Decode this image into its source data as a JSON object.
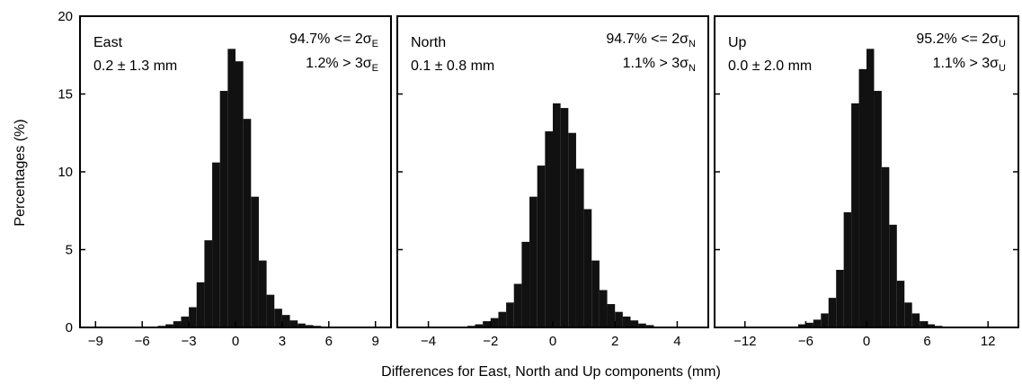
{
  "figure": {
    "ylabel": "Percentages (%)",
    "xlabel": "Differences for East, North and Up components (mm)"
  },
  "chart_data": [
    {
      "type": "bar",
      "panel": "East",
      "ylim": [
        0,
        20
      ],
      "yticks": [
        0,
        5,
        10,
        15,
        20
      ],
      "xlim": [
        -10,
        10
      ],
      "xticks": [
        -9,
        -6,
        -3,
        0,
        3,
        6,
        9
      ],
      "bin_width": 0.5,
      "bin_centers": [
        -5.25,
        -4.75,
        -4.25,
        -3.75,
        -3.25,
        -2.75,
        -2.25,
        -1.75,
        -1.25,
        -0.75,
        -0.25,
        0.25,
        0.75,
        1.25,
        1.75,
        2.25,
        2.75,
        3.25,
        3.75,
        4.25,
        4.75,
        5.25,
        5.75,
        6.25
      ],
      "values": [
        0.05,
        0.1,
        0.2,
        0.4,
        0.7,
        1.3,
        2.9,
        5.6,
        10.6,
        15.2,
        17.9,
        17.1,
        13.4,
        8.4,
        4.3,
        2.1,
        1.2,
        0.8,
        0.45,
        0.25,
        0.15,
        0.1,
        0.05,
        0.03
      ],
      "annotations": {
        "name": "East",
        "mean_std": "0.2 ± 1.3 mm",
        "within_2sigma": "94.7% <= 2σ",
        "beyond_3sigma": "1.2% > 3σ",
        "sigma_subscript": "E"
      }
    },
    {
      "type": "bar",
      "panel": "North",
      "ylim": [
        0,
        20
      ],
      "yticks": [
        0,
        5,
        10,
        15,
        20
      ],
      "xlim": [
        -5,
        5
      ],
      "xticks": [
        -4,
        -2,
        0,
        2,
        4
      ],
      "bin_width": 0.25,
      "bin_centers": [
        -2.875,
        -2.625,
        -2.375,
        -2.125,
        -1.875,
        -1.625,
        -1.375,
        -1.125,
        -0.875,
        -0.625,
        -0.375,
        -0.125,
        0.125,
        0.375,
        0.625,
        0.875,
        1.125,
        1.375,
        1.625,
        1.875,
        2.125,
        2.375,
        2.625,
        2.875,
        3.125,
        3.375
      ],
      "values": [
        0.05,
        0.1,
        0.2,
        0.4,
        0.6,
        1.0,
        1.6,
        2.8,
        5.5,
        8.4,
        10.4,
        12.6,
        14.4,
        14.1,
        12.5,
        10.2,
        7.6,
        4.3,
        2.4,
        1.5,
        1.0,
        0.7,
        0.45,
        0.25,
        0.15,
        0.05
      ],
      "annotations": {
        "name": "North",
        "mean_std": "0.1 ± 0.8 mm",
        "within_2sigma": "94.7% <= 2σ",
        "beyond_3sigma": "1.1% > 3σ",
        "sigma_subscript": "N"
      }
    },
    {
      "type": "bar",
      "panel": "Up",
      "ylim": [
        0,
        20
      ],
      "yticks": [
        0,
        5,
        10,
        15,
        20
      ],
      "xlim": [
        -15,
        15
      ],
      "xticks": [
        -12,
        -6,
        0,
        6,
        12
      ],
      "bin_width": 0.75,
      "bin_centers": [
        -6.375,
        -5.625,
        -4.875,
        -4.125,
        -3.375,
        -2.625,
        -1.875,
        -1.125,
        -0.375,
        0.375,
        1.125,
        1.875,
        2.625,
        3.375,
        4.125,
        4.875,
        5.625,
        6.375,
        7.125,
        7.875
      ],
      "values": [
        0.2,
        0.3,
        0.5,
        0.9,
        1.9,
        3.7,
        7.4,
        14.4,
        16.6,
        17.9,
        15.2,
        10.3,
        6.6,
        3.0,
        1.6,
        0.9,
        0.4,
        0.2,
        0.1,
        0.05
      ],
      "annotations": {
        "name": "Up",
        "mean_std": "0.0 ± 2.0 mm",
        "within_2sigma": "95.2% <= 2σ",
        "beyond_3sigma": "1.1% > 3σ",
        "sigma_subscript": "U"
      }
    }
  ]
}
